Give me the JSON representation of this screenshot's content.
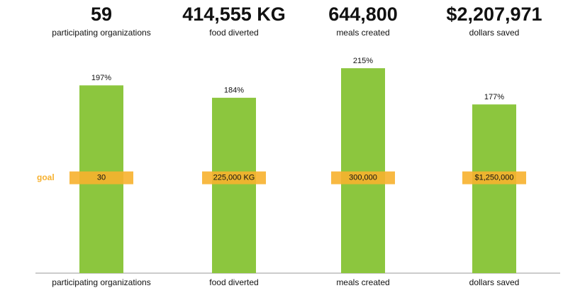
{
  "chart_data": {
    "type": "bar",
    "categories": [
      "participating organizations",
      "food diverted",
      "meals created",
      "dollars saved"
    ],
    "totals": [
      "59",
      "414,555 KG",
      "644,800",
      "$2,207,971"
    ],
    "values": [
      197,
      184,
      215,
      177
    ],
    "value_labels": [
      "197%",
      "184%",
      "215%",
      "177%"
    ],
    "color": "#8cc63e",
    "ylim": [
      0,
      230
    ],
    "goal": {
      "label": "goal",
      "value": 100,
      "color": "#f7b12e",
      "labels": [
        "30",
        "225,000 KG",
        "300,000",
        "$1,250,000"
      ]
    }
  }
}
